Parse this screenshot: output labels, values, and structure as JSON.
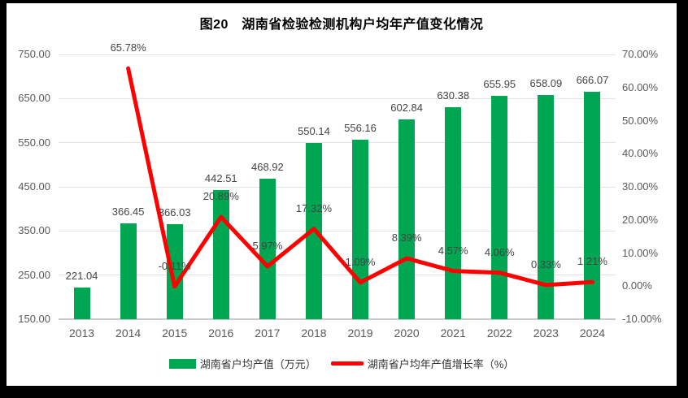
{
  "chart_data": {
    "type": "combo-bar-line",
    "title": "图20　湖南省检验检测机构户均年产值变化情况",
    "categories": [
      "2013",
      "2014",
      "2015",
      "2016",
      "2017",
      "2018",
      "2019",
      "2020",
      "2021",
      "2022",
      "2023",
      "2024"
    ],
    "series": [
      {
        "name": "湖南省户均产值（万元）",
        "type": "bar",
        "axis": "left",
        "color": "#00A651",
        "values": [
          221.04,
          366.45,
          366.03,
          442.51,
          468.92,
          550.14,
          556.16,
          602.84,
          630.38,
          655.95,
          658.09,
          666.07
        ]
      },
      {
        "name": "湖南省户均年产值增长率（%）",
        "type": "line",
        "axis": "right",
        "color": "#FE0000",
        "values": [
          null,
          65.78,
          -0.11,
          20.89,
          5.97,
          17.32,
          1.09,
          8.39,
          4.57,
          4.06,
          0.33,
          1.21
        ]
      }
    ],
    "left_axis": {
      "min": 150,
      "max": 750,
      "step": 100,
      "format": "0.00"
    },
    "right_axis": {
      "min": -10,
      "max": 70,
      "step": 10,
      "format": "0.00%"
    },
    "grid": "horizontal-from-left-axis",
    "legend_position": "bottom",
    "colors": {
      "background": "#FFFFFF",
      "frame": "#000000",
      "gridline": "#E2E2E2",
      "axis_line": "#C8C8C8",
      "tick_text": "#595959",
      "data_label_text": "#444444",
      "title_text": "#000000"
    }
  }
}
